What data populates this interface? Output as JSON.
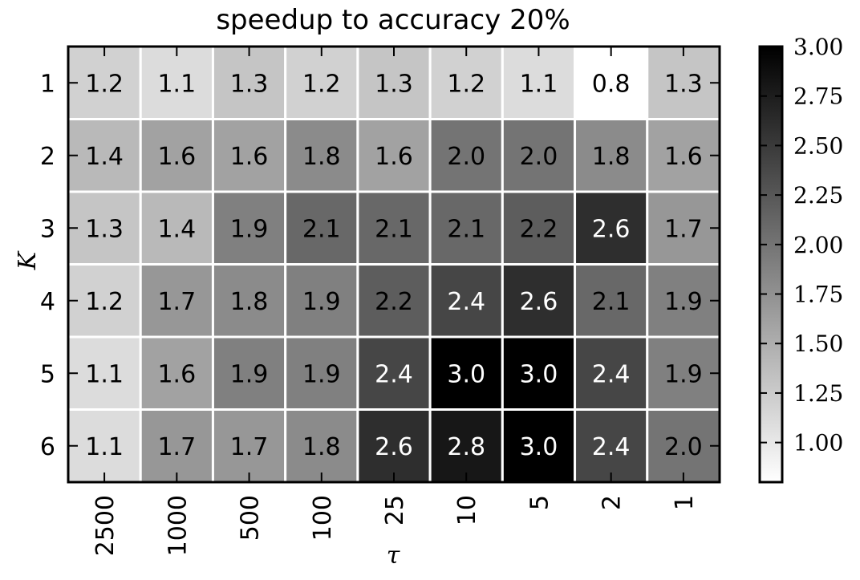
{
  "chart_data": {
    "type": "heatmap",
    "title": "speedup to accuracy 20%",
    "xlabel": "τ",
    "ylabel": "K",
    "x_categories": [
      "2500",
      "1000",
      "500",
      "100",
      "25",
      "10",
      "5",
      "2",
      "1"
    ],
    "y_categories": [
      "1",
      "2",
      "3",
      "4",
      "5",
      "6"
    ],
    "values": [
      [
        1.2,
        1.1,
        1.3,
        1.2,
        1.3,
        1.2,
        1.1,
        0.8,
        1.3
      ],
      [
        1.4,
        1.6,
        1.6,
        1.8,
        1.6,
        2.0,
        2.0,
        1.8,
        1.6
      ],
      [
        1.3,
        1.4,
        1.9,
        2.1,
        2.1,
        2.1,
        2.2,
        2.6,
        1.7
      ],
      [
        1.2,
        1.7,
        1.8,
        1.9,
        2.2,
        2.4,
        2.6,
        2.1,
        1.9
      ],
      [
        1.1,
        1.6,
        1.9,
        1.9,
        2.4,
        3.0,
        3.0,
        2.4,
        1.9
      ],
      [
        1.1,
        1.7,
        1.7,
        1.8,
        2.6,
        2.8,
        3.0,
        2.4,
        2.0
      ]
    ],
    "colorscale": {
      "min": 0.8,
      "max": 3.0,
      "low_color": "#ffffff",
      "high_color": "#000000",
      "ticks": [
        "1.00",
        "1.25",
        "1.50",
        "1.75",
        "2.00",
        "2.25",
        "2.50",
        "2.75",
        "3.00"
      ]
    },
    "grid": true,
    "colorbar_position": "right"
  }
}
